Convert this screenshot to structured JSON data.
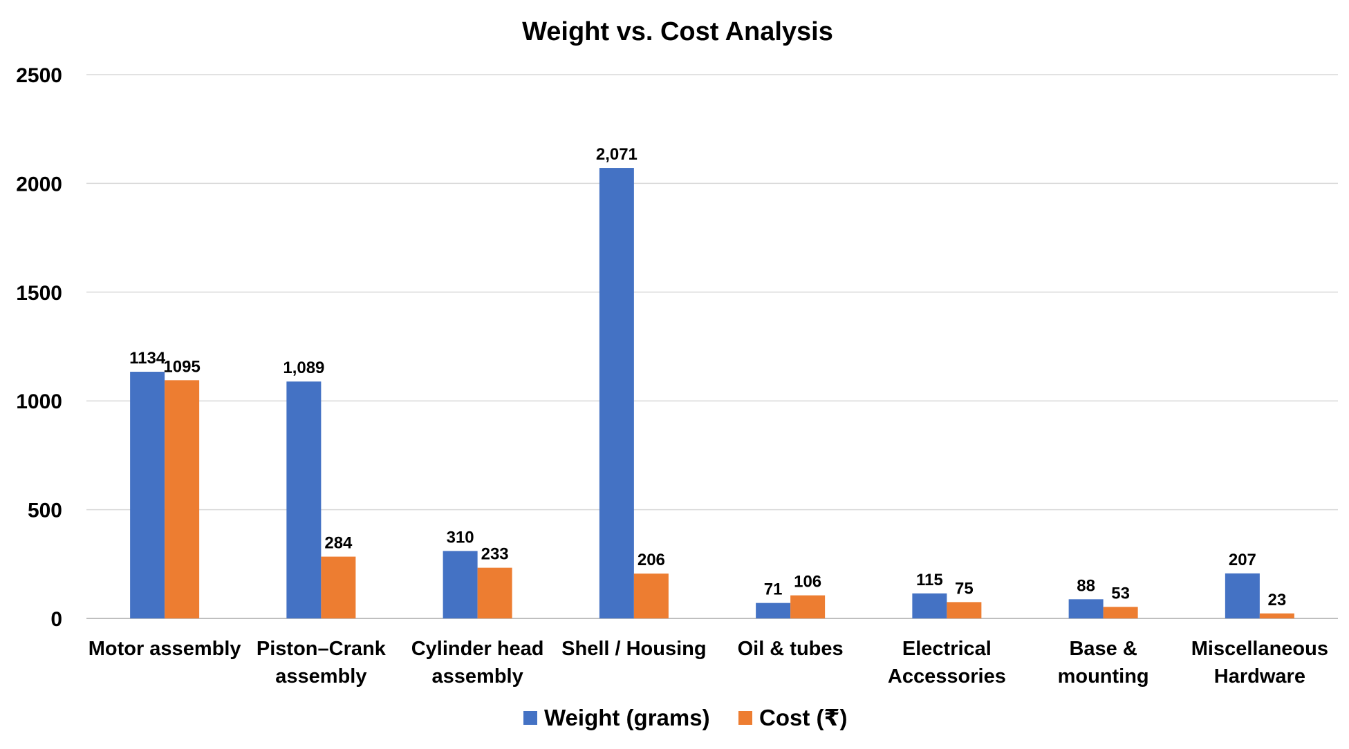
{
  "chart_data": {
    "type": "bar",
    "title": "Weight vs. Cost Analysis",
    "xlabel": "",
    "ylabel": "",
    "ylim": [
      0,
      2500
    ],
    "yticks": [
      0,
      500,
      1000,
      1500,
      2000,
      2500
    ],
    "ytick_labels": [
      "0",
      "500",
      "1000",
      "1500",
      "2000",
      "2500"
    ],
    "grid": true,
    "legend_position": "bottom",
    "categories": [
      [
        "Motor assembly"
      ],
      [
        "Piston–Crank",
        "assembly"
      ],
      [
        "Cylinder head",
        "assembly"
      ],
      [
        "Shell / Housing"
      ],
      [
        "Oil & tubes"
      ],
      [
        "Electrical",
        "Accessories"
      ],
      [
        "Base &",
        "mounting"
      ],
      [
        "Miscellaneous",
        "Hardware"
      ]
    ],
    "series": [
      {
        "name": "Weight (grams)",
        "color": "#4472C4",
        "values": [
          1134,
          1089,
          310,
          2071,
          71,
          115,
          88,
          207
        ],
        "labels": [
          "1134",
          "1,089",
          "310",
          "2,071",
          "71",
          "115",
          "88",
          "207"
        ]
      },
      {
        "name": "Cost (₹)",
        "color": "#ED7D31",
        "values": [
          1095,
          284,
          233,
          206,
          106,
          75,
          53,
          23
        ],
        "labels": [
          "1095",
          "284",
          "233",
          "206",
          "106",
          "75",
          "53",
          "23"
        ]
      }
    ]
  }
}
